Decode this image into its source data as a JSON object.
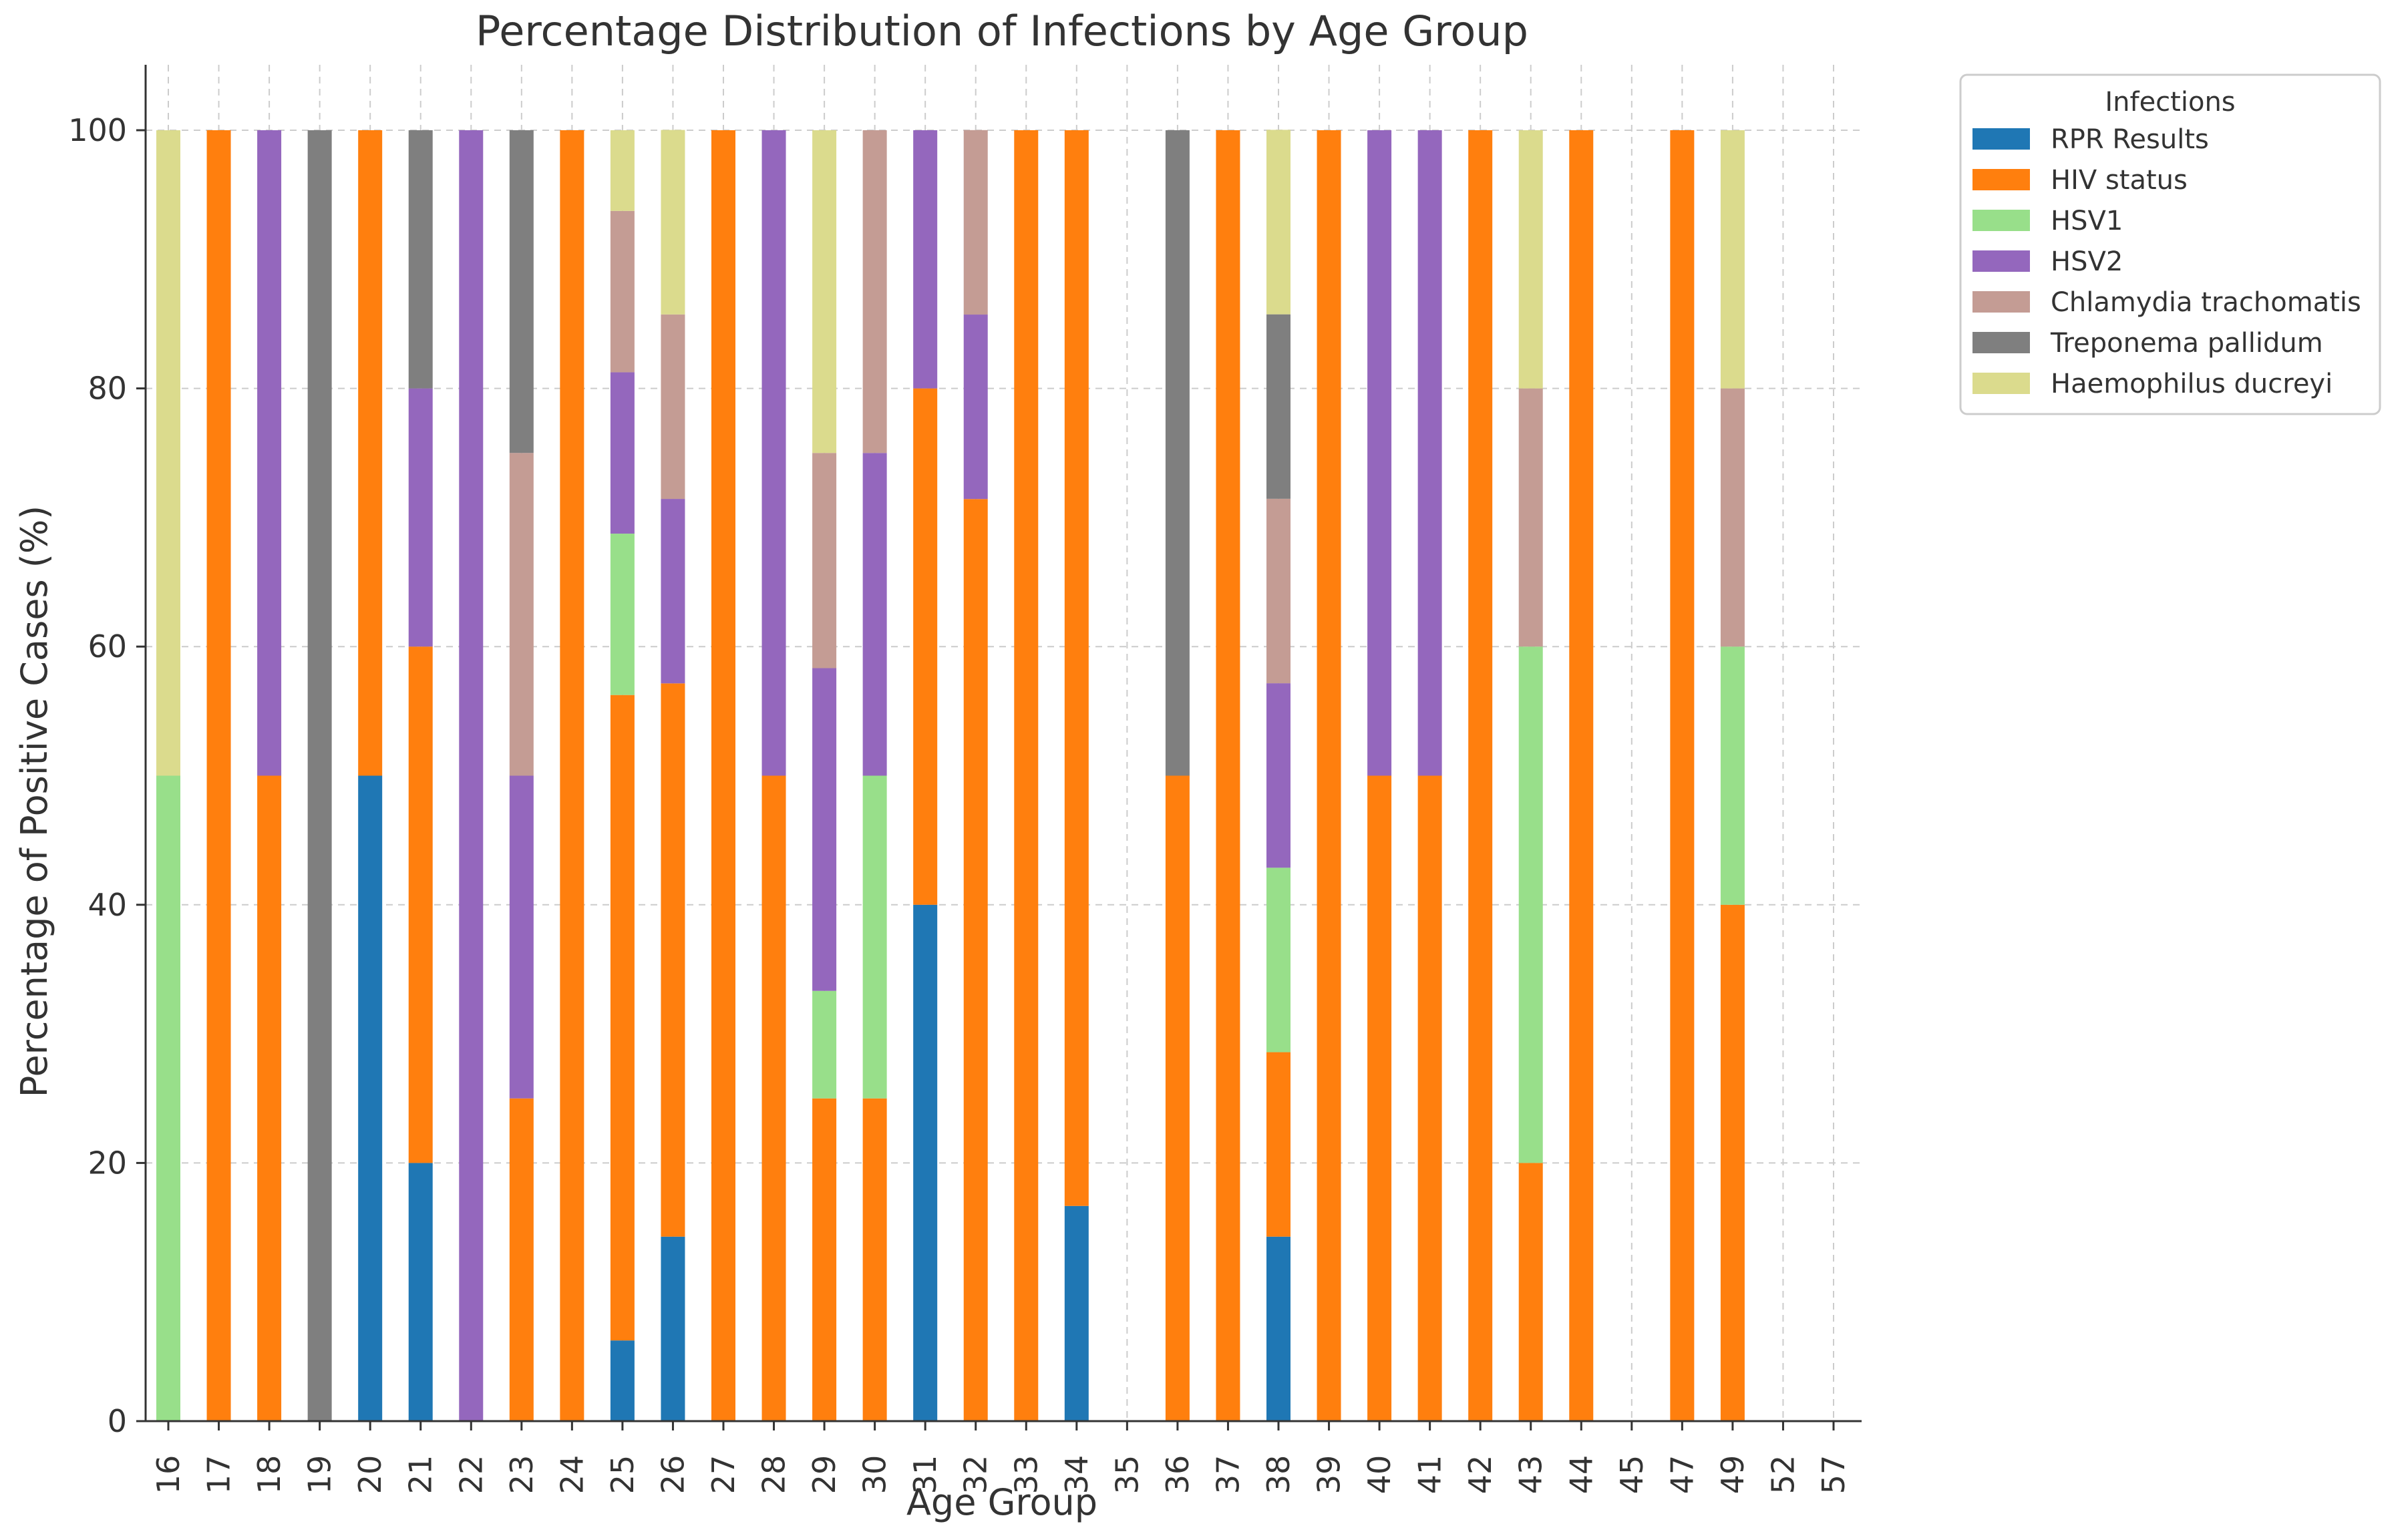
{
  "chart_data": {
    "type": "bar",
    "stacked": true,
    "title": "Percentage Distribution of Infections by Age Group",
    "xlabel": "Age Group",
    "ylabel": "Percentage of Positive Cases (%)",
    "ylim": [
      0,
      105
    ],
    "yticks": [
      0,
      20,
      40,
      60,
      80,
      100
    ],
    "grid": true,
    "legend_title": "Infections",
    "legend_position": "outside-top-right",
    "categories": [
      "16",
      "17",
      "18",
      "19",
      "20",
      "21",
      "22",
      "23",
      "24",
      "25",
      "26",
      "27",
      "28",
      "29",
      "30",
      "31",
      "32",
      "33",
      "34",
      "35",
      "36",
      "37",
      "38",
      "39",
      "40",
      "41",
      "42",
      "43",
      "44",
      "45",
      "47",
      "49",
      "52",
      "57"
    ],
    "series": [
      {
        "name": "RPR Results",
        "color": "#1f77b4",
        "values": [
          0,
          0,
          0,
          0,
          50,
          20,
          0,
          0,
          0,
          6.25,
          14.29,
          0,
          0,
          0,
          0,
          40,
          0,
          0,
          16.67,
          0,
          0,
          0,
          14.29,
          0,
          0,
          0,
          0,
          0,
          0,
          0,
          0,
          0,
          0,
          0
        ]
      },
      {
        "name": "HIV status",
        "color": "#ff7f0e",
        "values": [
          0,
          100,
          50,
          0,
          50,
          40,
          0,
          25,
          100,
          50,
          42.86,
          100,
          50,
          25,
          25,
          40,
          71.43,
          100,
          83.33,
          0,
          50,
          100,
          14.29,
          100,
          50,
          50,
          100,
          20,
          100,
          0,
          100,
          40,
          0,
          0
        ]
      },
      {
        "name": "HSV1",
        "color": "#98df8a",
        "values": [
          50,
          0,
          0,
          0,
          0,
          0,
          0,
          0,
          0,
          12.5,
          0,
          0,
          0,
          8.33,
          25,
          0,
          0,
          0,
          0,
          0,
          0,
          0,
          14.29,
          0,
          0,
          0,
          0,
          40,
          0,
          0,
          0,
          20,
          0,
          0
        ]
      },
      {
        "name": "HSV2",
        "color": "#9467bd",
        "values": [
          0,
          0,
          50,
          0,
          0,
          20,
          100,
          25,
          0,
          12.5,
          14.29,
          0,
          50,
          25,
          25,
          20,
          14.29,
          0,
          0,
          0,
          0,
          0,
          14.29,
          0,
          50,
          50,
          0,
          0,
          0,
          0,
          0,
          0,
          0,
          0
        ]
      },
      {
        "name": "Chlamydia trachomatis",
        "color": "#c49c94",
        "values": [
          0,
          0,
          0,
          0,
          0,
          0,
          0,
          25,
          0,
          12.5,
          14.29,
          0,
          0,
          16.67,
          25,
          0,
          14.29,
          0,
          0,
          0,
          0,
          0,
          14.29,
          0,
          0,
          0,
          0,
          20,
          0,
          0,
          0,
          20,
          0,
          0
        ]
      },
      {
        "name": "Treponema pallidum",
        "color": "#7f7f7f",
        "values": [
          0,
          0,
          0,
          100,
          0,
          20,
          0,
          25,
          0,
          0,
          0,
          0,
          0,
          0,
          0,
          0,
          0,
          0,
          0,
          0,
          50,
          0,
          14.29,
          0,
          0,
          0,
          0,
          0,
          0,
          0,
          0,
          0,
          0,
          0
        ]
      },
      {
        "name": "Haemophilus ducreyi",
        "color": "#dbdb8d",
        "values": [
          50,
          0,
          0,
          0,
          0,
          0,
          0,
          0,
          0,
          6.25,
          14.29,
          0,
          0,
          25,
          0,
          0,
          0,
          0,
          0,
          0,
          0,
          0,
          14.29,
          0,
          0,
          0,
          0,
          20,
          0,
          0,
          0,
          20,
          0,
          0
        ]
      }
    ]
  }
}
